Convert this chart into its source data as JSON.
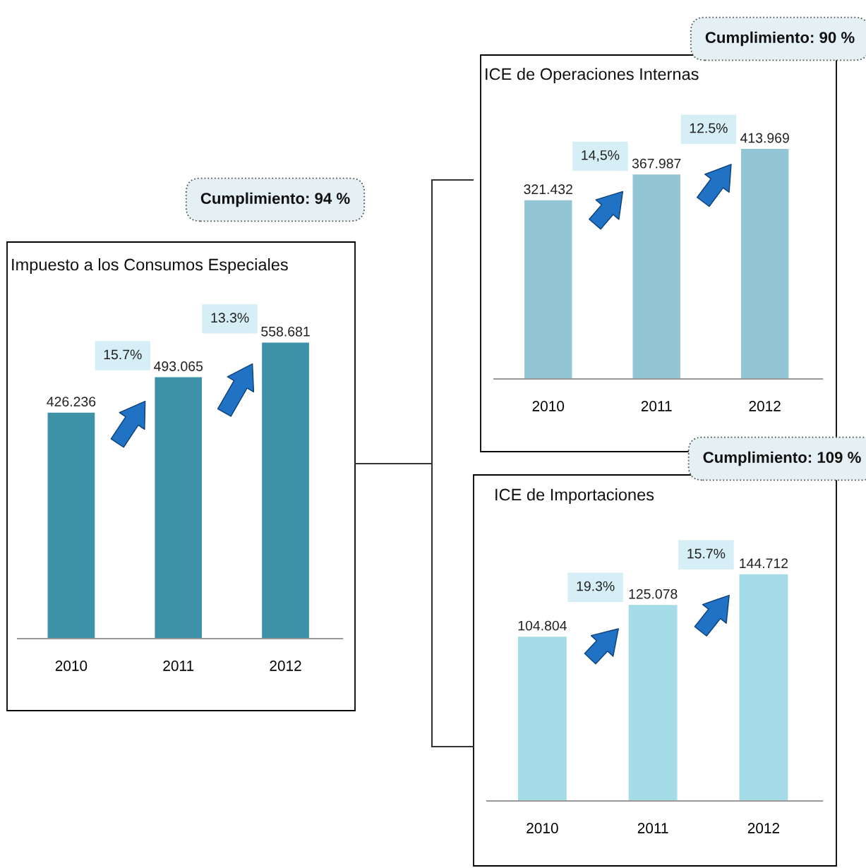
{
  "chart_data": [
    {
      "type": "bar",
      "title": "Impuesto a los Consumos Especiales",
      "categories": [
        "2010",
        "2011",
        "2012"
      ],
      "values": [
        426.236,
        493.065,
        558.681
      ],
      "color": "#3d92a8",
      "data_labels": true,
      "annotations": [
        "15.7%",
        "13.3%",
        "Cumplimiento: 94 %"
      ]
    },
    {
      "type": "bar",
      "title": "ICE de Operaciones Internas",
      "categories": [
        "2010",
        "2011",
        "2012"
      ],
      "values": [
        321.432,
        367.987,
        413.969
      ],
      "color": "#93c6d4",
      "data_labels": true,
      "annotations": [
        "14,5%",
        "12.5%",
        "Cumplimiento: 90 %"
      ]
    },
    {
      "type": "bar",
      "title": "ICE de Importaciones",
      "categories": [
        "2010",
        "2011",
        "2012"
      ],
      "values": [
        104.804,
        125.078,
        144.712
      ],
      "color": "#a6dbe8",
      "data_labels": true,
      "annotations": [
        "19.3%",
        "15.7%",
        "Cumplimiento: 109 %"
      ]
    }
  ]
}
